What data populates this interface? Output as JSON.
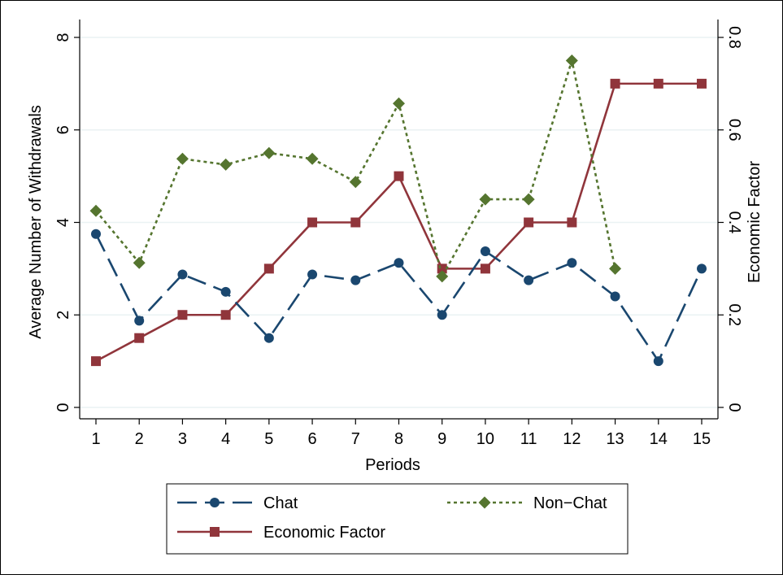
{
  "chart_data": {
    "type": "line",
    "x": [
      1,
      2,
      3,
      4,
      5,
      6,
      7,
      8,
      9,
      10,
      11,
      12,
      13,
      14,
      15
    ],
    "xlabel": "Periods",
    "ylabel": "Average Number of Withdrawals",
    "ylabel_right": "Economic Factor",
    "xlim": [
      1,
      15
    ],
    "ylim": [
      0,
      8
    ],
    "ylim_right": [
      0,
      0.8
    ],
    "x_ticks": [
      "1",
      "2",
      "3",
      "4",
      "5",
      "6",
      "7",
      "8",
      "9",
      "10",
      "11",
      "12",
      "13",
      "14",
      "15"
    ],
    "y_ticks": [
      "0",
      "2",
      "4",
      "6",
      "8"
    ],
    "y_ticks_right": [
      "0",
      "0.2",
      "0.4",
      "0.6",
      "0.8"
    ],
    "grid": true,
    "legend_position": "bottom",
    "series": [
      {
        "name": "Chat",
        "axis": "left",
        "color": "#1a476f",
        "line_style": "long-dash",
        "marker": "circle",
        "values": [
          3.75,
          1.875,
          2.875,
          2.5,
          1.5,
          2.875,
          2.75,
          3.125,
          2.0,
          3.375,
          2.75,
          3.125,
          2.4,
          1.0,
          3.0
        ]
      },
      {
        "name": "Non−Chat",
        "axis": "left",
        "color": "#55752f",
        "line_style": "dotted",
        "marker": "diamond",
        "values": [
          4.25,
          3.125,
          5.375,
          5.25,
          5.5,
          5.375,
          4.875,
          6.571,
          2.833,
          4.5,
          4.5,
          7.5,
          3.0,
          null,
          null
        ]
      },
      {
        "name": "Economic Factor",
        "axis": "right",
        "color": "#90353b",
        "line_style": "solid",
        "marker": "square",
        "values": [
          0.1,
          0.15,
          0.2,
          0.2,
          0.3,
          0.4,
          0.4,
          0.5,
          0.3,
          0.3,
          0.4,
          0.4,
          0.7,
          0.7,
          0.7
        ]
      }
    ]
  }
}
